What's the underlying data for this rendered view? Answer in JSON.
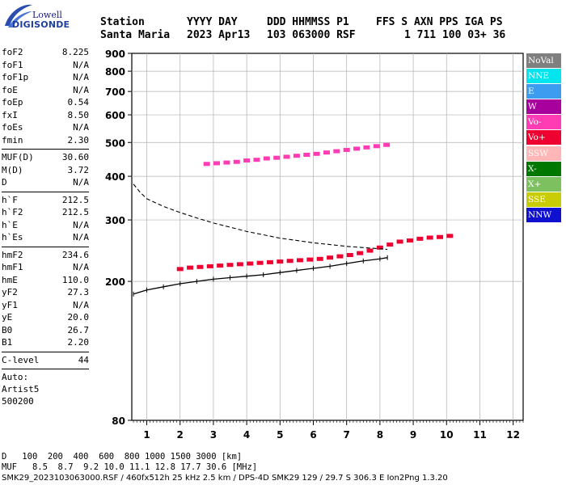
{
  "logo": {
    "top": "Lowell",
    "bottom": "DIGISONDE"
  },
  "header": {
    "columns": [
      "Station",
      "YYYY DAY",
      "DDD HHMMSS P1",
      "FFS S AXN PPS IGA PS"
    ],
    "values": [
      "Santa Maria",
      "2023 Apr13",
      "103 063000 RSF",
      "1 711 100 03+ 36"
    ]
  },
  "params": {
    "group1": [
      {
        "name": "foF2",
        "value": "8.225"
      },
      {
        "name": "foF1",
        "value": "N/A"
      },
      {
        "name": "foF1p",
        "value": "N/A"
      },
      {
        "name": "foE",
        "value": "N/A"
      },
      {
        "name": "foEp",
        "value": "0.54"
      },
      {
        "name": "fxI",
        "value": "8.50"
      },
      {
        "name": "foEs",
        "value": "N/A"
      },
      {
        "name": "fmin",
        "value": "2.30"
      }
    ],
    "group2": [
      {
        "name": "MUF(D)",
        "value": "30.60"
      },
      {
        "name": "M(D)",
        "value": "3.72"
      },
      {
        "name": "D",
        "value": "N/A"
      }
    ],
    "group3": [
      {
        "name": "h`F",
        "value": "212.5"
      },
      {
        "name": "h`F2",
        "value": "212.5"
      },
      {
        "name": "h`E",
        "value": "N/A"
      },
      {
        "name": "h`Es",
        "value": "N/A"
      }
    ],
    "group4": [
      {
        "name": "hmF2",
        "value": "234.6"
      },
      {
        "name": "hmF1",
        "value": "N/A"
      },
      {
        "name": "hmE",
        "value": "110.0"
      },
      {
        "name": "yF2",
        "value": "27.3"
      },
      {
        "name": "yF1",
        "value": "N/A"
      },
      {
        "name": "yE",
        "value": "20.0"
      },
      {
        "name": "B0",
        "value": "26.7"
      },
      {
        "name": "B1",
        "value": "2.20"
      }
    ],
    "group5": [
      {
        "name": "C-level",
        "value": "44"
      }
    ],
    "auto": [
      "Auto:",
      "Artist5",
      "500200"
    ]
  },
  "legend": [
    {
      "label": "NoVal",
      "bg": "#7f7f7f",
      "fg": "#ffffff"
    },
    {
      "label": "NNE",
      "bg": "#00e5ee",
      "fg": "#ffffff"
    },
    {
      "label": "E",
      "bg": "#3c9cf0",
      "fg": "#ffffff"
    },
    {
      "label": "W",
      "bg": "#a8009c",
      "fg": "#ffffff"
    },
    {
      "label": "Vo-",
      "bg": "#ff3cb4",
      "fg": "#ffffff"
    },
    {
      "label": "Vo+",
      "bg": "#ee0030",
      "fg": "#ffffff"
    },
    {
      "label": "SSW",
      "bg": "#ffb6b6",
      "fg": "#ffffff"
    },
    {
      "label": "X-",
      "bg": "#007800",
      "fg": "#ffffff"
    },
    {
      "label": "X+",
      "bg": "#7cc060",
      "fg": "#ffffff"
    },
    {
      "label": "SSE",
      "bg": "#c8cc00",
      "fg": "#ffffff"
    },
    {
      "label": "NNW",
      "bg": "#1010d0",
      "fg": "#ffffff"
    }
  ],
  "footer": {
    "d_label": "D",
    "d_values": "100  200  400  600  800 1000 1500 3000 [km]",
    "muf_label": "MUF",
    "muf_values": "8.5  8.7  9.2 10.0 11.1 12.8 17.7 30.6 [MHz]",
    "file_line": "SMK29_2023103063000.RSF / 460fx512h 25 kHz 2.5 km / DPS-4D SMK29 129 / 29.7 S 306.3 E Ion2Png 1.3.20"
  },
  "chart_data": {
    "type": "scatter",
    "title": "",
    "xlabel": "",
    "ylabel": "",
    "x_ticks": [
      1,
      2,
      3,
      4,
      5,
      6,
      7,
      8,
      9,
      10,
      11,
      12
    ],
    "y_ticks": [
      80,
      200,
      300,
      400,
      500,
      600,
      700,
      800,
      900
    ],
    "xlim": [
      0.55,
      12.3
    ],
    "ylim": [
      80,
      900
    ],
    "y_scale": "log",
    "grid": true,
    "series": [
      {
        "name": "Vo+",
        "color": "#ee0030",
        "x": [
          2.0,
          2.3,
          2.6,
          2.9,
          3.2,
          3.5,
          3.8,
          4.1,
          4.4,
          4.7,
          5.0,
          5.3,
          5.6,
          5.9,
          6.2,
          6.5,
          6.8,
          7.1,
          7.4,
          7.7,
          8.0,
          8.3,
          8.6,
          8.9,
          9.2,
          9.5,
          9.8,
          10.1
        ],
        "y": [
          217,
          219,
          220,
          221,
          222,
          223,
          224,
          225,
          226,
          227,
          228,
          229,
          230,
          231,
          232,
          234,
          236,
          238,
          241,
          245,
          250,
          255,
          260,
          262,
          265,
          267,
          268,
          270
        ]
      },
      {
        "name": "Vo-",
        "color": "#ff3cb4",
        "x": [
          2.8,
          3.1,
          3.4,
          3.7,
          4.0,
          4.3,
          4.6,
          4.9,
          5.2,
          5.5,
          5.8,
          6.1,
          6.4,
          6.7,
          7.0,
          7.3,
          7.6,
          7.9,
          8.2
        ],
        "y": [
          434,
          436,
          438,
          440,
          444,
          446,
          450,
          452,
          455,
          458,
          461,
          464,
          468,
          472,
          476,
          480,
          484,
          488,
          492
        ]
      },
      {
        "name": "trace",
        "color": "#000000",
        "x": [
          0.6,
          1.0,
          1.5,
          2.0,
          2.5,
          3.0,
          3.5,
          4.0,
          4.5,
          5.0,
          5.5,
          6.0,
          6.5,
          7.0,
          7.5,
          8.0,
          8.225
        ],
        "y": [
          184,
          189,
          193,
          197,
          200,
          203,
          205,
          207,
          209,
          212,
          215,
          218,
          221,
          225,
          229,
          232,
          234
        ]
      },
      {
        "name": "profile",
        "color": "#000000",
        "x": [
          0.6,
          0.8,
          1.0,
          1.5,
          2.0,
          2.5,
          3.0,
          3.5,
          4.0,
          4.5,
          5.0,
          5.5,
          6.0,
          6.5,
          7.0,
          7.5,
          8.0,
          8.225
        ],
        "y": [
          380,
          360,
          345,
          328,
          315,
          304,
          294,
          286,
          278,
          272,
          266,
          262,
          258,
          255,
          252,
          250,
          248,
          247
        ]
      }
    ]
  }
}
